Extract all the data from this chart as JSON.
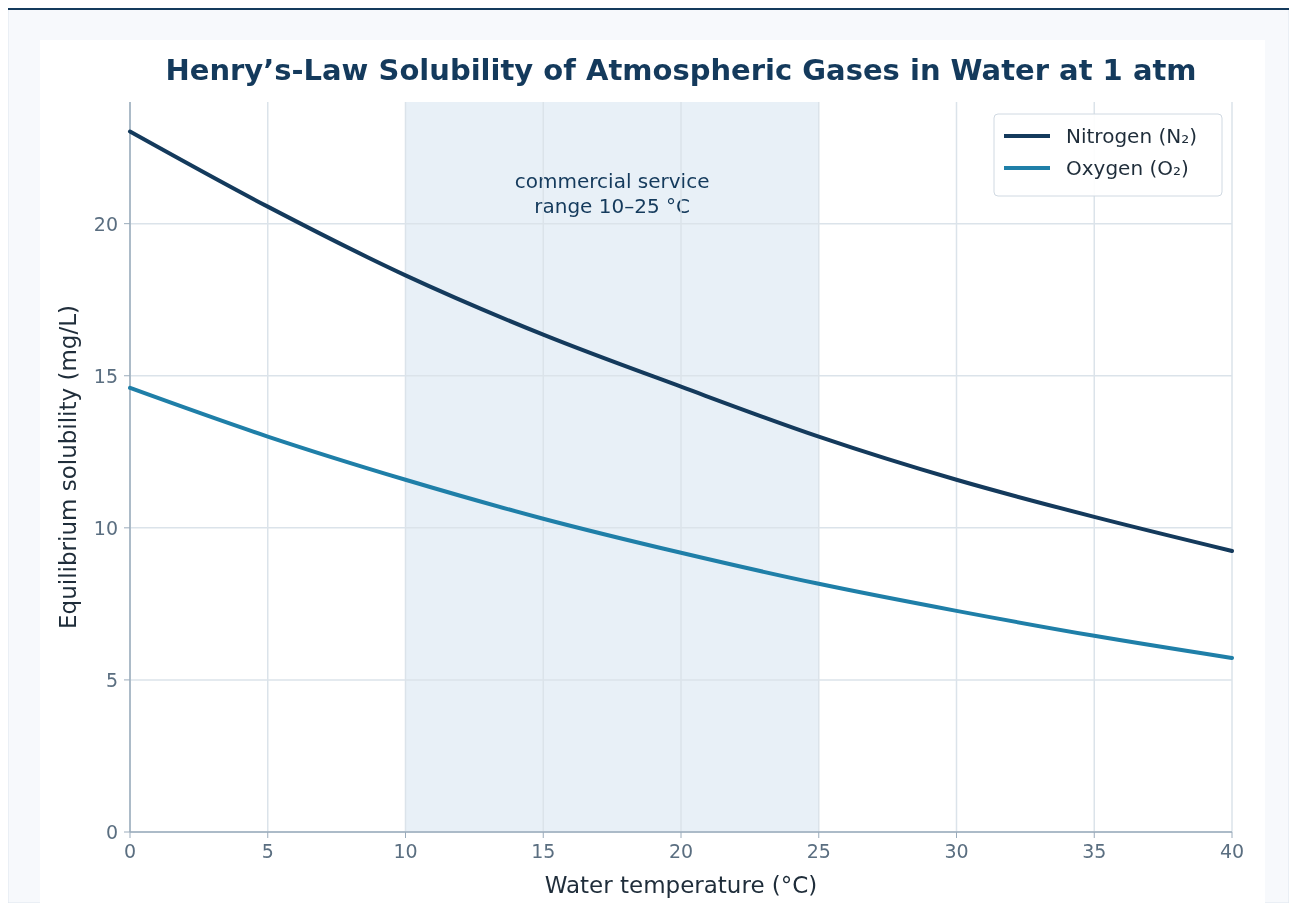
{
  "chart_data": {
    "type": "line",
    "title": "Henry’s-Law Solubility of Atmospheric Gases in Water at 1 atm",
    "xlabel": "Water temperature  (°C)",
    "ylabel": "Equilibrium solubility  (mg/L)",
    "x": [
      0,
      5,
      10,
      15,
      20,
      25,
      30,
      35,
      40
    ],
    "series": [
      {
        "name": "Nitrogen (N₂)",
        "color": "#143a5c",
        "values": [
          23.03,
          20.56,
          18.3,
          16.35,
          14.64,
          13.0,
          11.58,
          10.36,
          9.24
        ]
      },
      {
        "name": "Oxygen (O₂)",
        "color": "#1f7fa8",
        "values": [
          14.6,
          13.0,
          11.58,
          10.3,
          9.18,
          8.16,
          7.27,
          6.45,
          5.72
        ]
      }
    ],
    "xlim": [
      0,
      40
    ],
    "xticks": [
      0,
      5,
      10,
      15,
      20,
      25,
      30,
      35,
      40
    ],
    "ylim": [
      0,
      24
    ],
    "yticks": [
      0,
      5,
      10,
      15,
      20
    ],
    "bands": [
      {
        "axis": "x",
        "from": 10,
        "to": 25,
        "label": "commercial service\nrange  10–25 °C",
        "color": "#e8f0f7"
      }
    ],
    "grid": true,
    "legend": "top right",
    "line_style": "solid",
    "marker": "none"
  }
}
